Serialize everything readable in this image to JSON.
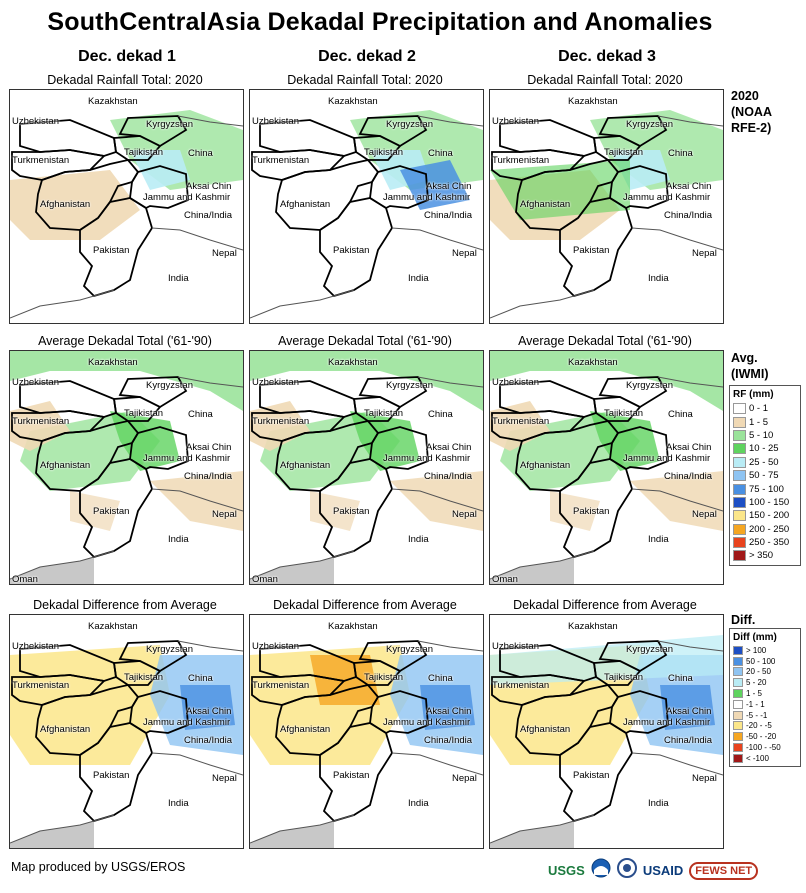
{
  "title": "SouthCentralAsia Dekadal Precipitation and Anomalies",
  "columns": [
    "Dec. dekad 1",
    "Dec. dekad 2",
    "Dec. dekad 3"
  ],
  "rows": [
    {
      "map_title": "Dekadal Rainfall Total: 2020",
      "row_label": [
        "2020",
        "(NOAA",
        "RFE-2)"
      ]
    },
    {
      "map_title": "Average Dekadal Total ('61-'90)",
      "row_label": [
        "Avg.",
        "(IWMI)"
      ]
    },
    {
      "map_title": "Dekadal Difference from Average",
      "row_label": [
        "Diff."
      ]
    }
  ],
  "place_labels": {
    "kazakhstan": "Kazakhstan",
    "uzbekistan": "Uzbekistan",
    "kyrgyzstan": "Kyrgyzstan",
    "turkmenistan": "Turkmenistan",
    "tajikistan": "Tajikistan",
    "china": "China",
    "afghanistan": "Afghanistan",
    "aksai_chin": "Aksai Chin",
    "jammu_kashmir": "Jammu and Kashmir",
    "china_india": "China/India",
    "pakistan": "Pakistan",
    "nepal": "Nepal",
    "india": "India",
    "oman": "Oman"
  },
  "rf_legend": {
    "title": "RF (mm)",
    "items": [
      {
        "label": "0 - 1",
        "color": "#ffffff"
      },
      {
        "label": "1 - 5",
        "color": "#f0d9b5"
      },
      {
        "label": "5 - 10",
        "color": "#9be39b"
      },
      {
        "label": "10 - 25",
        "color": "#5fd35f"
      },
      {
        "label": "25 - 50",
        "color": "#b9ecf5"
      },
      {
        "label": "50 - 75",
        "color": "#8fc4f2"
      },
      {
        "label": "75 - 100",
        "color": "#4a90e2"
      },
      {
        "label": "100 - 150",
        "color": "#1d4fc4"
      },
      {
        "label": "150 - 200",
        "color": "#fbe68a"
      },
      {
        "label": "200 - 250",
        "color": "#f5a623"
      },
      {
        "label": "250 - 350",
        "color": "#e8431e"
      },
      {
        "label": "> 350",
        "color": "#a01818"
      }
    ]
  },
  "diff_legend": {
    "title": "Diff (mm)",
    "items": [
      {
        "label": "> 100",
        "color": "#1d4fc4"
      },
      {
        "label": "50 - 100",
        "color": "#4a90e2"
      },
      {
        "label": "20 - 50",
        "color": "#8fc4f2"
      },
      {
        "label": "5 - 20",
        "color": "#b9ecf5"
      },
      {
        "label": "1 - 5",
        "color": "#5fd35f"
      },
      {
        "label": "-1 - 1",
        "color": "#ffffff"
      },
      {
        "label": "-5 - -1",
        "color": "#f0d9b5"
      },
      {
        "label": "-20 - -5",
        "color": "#fbe68a"
      },
      {
        "label": "-50 - -20",
        "color": "#f5a623"
      },
      {
        "label": "-100 - -50",
        "color": "#e8431e"
      },
      {
        "label": "< -100",
        "color": "#a01818"
      }
    ]
  },
  "credit": "Map produced by USGS/EROS",
  "logos": {
    "usgs": "USGS",
    "usaid": "USAID",
    "fewsnet": "FEWS NET"
  },
  "colors": {
    "rf_low": "#f0d9b5",
    "rf_green": "#9be39b",
    "rf_green2": "#5fd35f",
    "rf_cyan": "#b9ecf5",
    "rf_blue": "#4a90e2",
    "ocean": "#c8c8c8",
    "border": "#000000"
  }
}
